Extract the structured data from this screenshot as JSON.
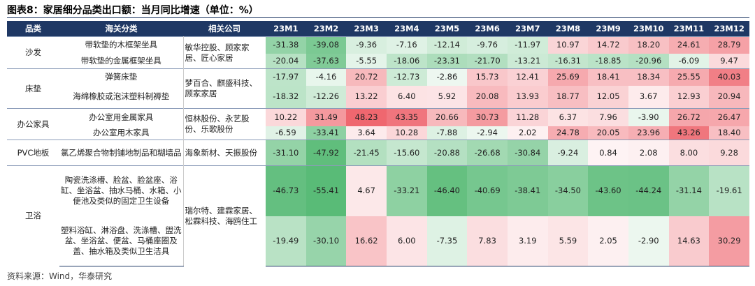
{
  "title": "图表8：家居细分品类出口额：当月同比增速（单位：%）",
  "table": {
    "header": [
      "品类",
      "海关分类",
      "相关公司",
      "23M1",
      "23M2",
      "23M3",
      "23M4",
      "23M5",
      "23M6",
      "23M7",
      "23M8",
      "23M9",
      "23M10",
      "23M11",
      "23M12"
    ],
    "groups": [
      {
        "category": "沙发",
        "companies": "敏华控股、顾家家居、匠心家居",
        "items": [
          {
            "name": "带软垫的木框架坐具",
            "values": [
              "-31.38",
              "-39.08",
              "-9.36",
              "-7.16",
              "-12.14",
              "-9.76",
              "-11.97",
              "10.97",
              "14.72",
              "18.20",
              "24.61",
              "28.79"
            ]
          },
          {
            "name": "带软垫的金属框架坐具",
            "values": [
              "-20.04",
              "-37.63",
              "-5.55",
              "-18.06",
              "-23.31",
              "-21.70",
              "-13.21",
              "-16.31",
              "-18.85",
              "-20.96",
              "-6.09",
              "9.47"
            ]
          }
        ]
      },
      {
        "category": "床垫",
        "companies": "梦百合、麒盛科技、顾家家居",
        "items": [
          {
            "name": "弹簧床垫",
            "values": [
              "-17.97",
              "-4.16",
              "20.72",
              "-12.73",
              "-2.86",
              "15.73",
              "12.41",
              "25.69",
              "18.41",
              "18.34",
              "25.55",
              "40.03"
            ]
          },
          {
            "name": "海绵橡胶或泡沫塑料制褥垫",
            "values": [
              "-18.32",
              "-12.26",
              "13.22",
              "6.40",
              "5.92",
              "20.08",
              "13.93",
              "18.77",
              "12.05",
              "3.67",
              "12.93",
              "20.94"
            ]
          }
        ]
      },
      {
        "category": "办公家具",
        "companies": "恒林股份、永艺股份、乐歌股份",
        "items": [
          {
            "name": "办公室用金属家具",
            "values": [
              "10.22",
              "31.49",
              "48.23",
              "43.35",
              "20.66",
              "30.73",
              "11.28",
              "6.37",
              "7.96",
              "-3.90",
              "26.72",
              "26.47"
            ]
          },
          {
            "name": "办公室用木家具",
            "values": [
              "-6.59",
              "-33.41",
              "3.64",
              "10.28",
              "-7.88",
              "-2.94",
              "2.02",
              "24.78",
              "20.05",
              "23.96",
              "43.26",
              "18.40"
            ]
          }
        ]
      },
      {
        "category": "PVC地板",
        "companies": "海象新材、天振股份",
        "items": [
          {
            "name": "氯乙烯聚合物制铺地制品和糊墙品",
            "values": [
              "-31.10",
              "-47.92",
              "-21.45",
              "-15.60",
              "-20.88",
              "-26.68",
              "-30.84",
              "-9.24",
              "0.84",
              "2.08",
              "8.00",
              "9.28"
            ]
          }
        ]
      },
      {
        "category": "卫浴",
        "companies": "瑞尔特、建霖家居、松霖科技、海鸥住工",
        "items": [
          {
            "name": "陶瓷洗涤槽、脸盆、脸盆座、浴缸、坐浴盆、抽水马桶、水箱、小便池及类似的固定卫生设备",
            "values": [
              "-46.73",
              "-55.41",
              "4.67",
              "-33.21",
              "-46.40",
              "-40.69",
              "-38.41",
              "-34.50",
              "-43.60",
              "-44.24",
              "-31.14",
              "-19.61"
            ]
          },
          {
            "name": "塑料浴缸、淋浴盘、洗涤槽、盥洗盆、坐浴盆、便盆、马桶座圈及盖、抽水箱及类似卫生洁具",
            "values": [
              "-19.49",
              "-30.10",
              "16.62",
              "6.00",
              "-7.35",
              "7.83",
              "3.19",
              "5.59",
              "2.05",
              "-2.90",
              "14.63",
              "30.29"
            ]
          }
        ]
      }
    ]
  },
  "source": "资料来源：Wind，华泰研究"
}
